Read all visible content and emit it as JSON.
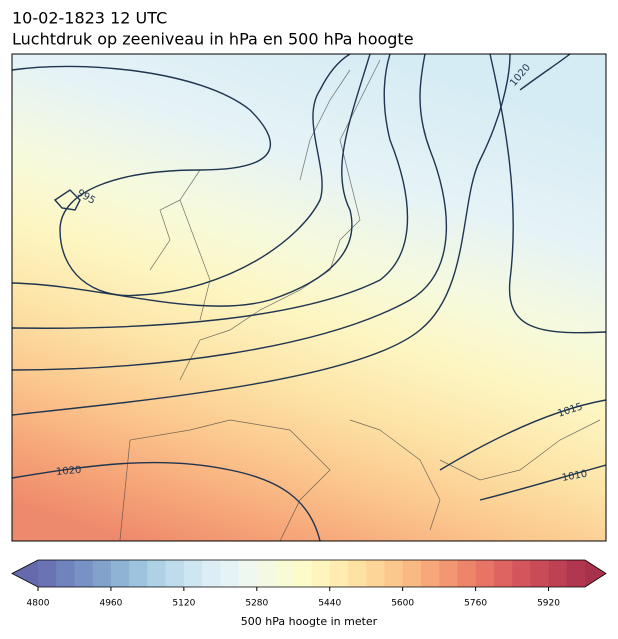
{
  "title": "10-02-1823 12 UTC",
  "subtitle": "Luchtdruk op zeeniveau in hPa en 500 hPa hoogte",
  "contour_labels": [
    995,
    1020,
    1015,
    1010,
    1020
  ],
  "colorbar": {
    "label": "500 hPa hoogte in meter",
    "range": [
      4800,
      6000
    ],
    "ticks": [
      4800,
      4960,
      5120,
      5280,
      5440,
      5600,
      5760,
      5920
    ],
    "under_color": "#646aac",
    "over_color": "#a8324c",
    "colors": [
      "#6a74b5",
      "#7083bd",
      "#7892c5",
      "#82a2cc",
      "#8fb3d5",
      "#9ec3de",
      "#aed1e6",
      "#bedcec",
      "#cee6f1",
      "#dcedf5",
      "#e6f3f6",
      "#eef7f0",
      "#f4f9e3",
      "#f9fbd6",
      "#fdfbca",
      "#fef4bd",
      "#feecb0",
      "#fee2a4",
      "#fdd598",
      "#fcc78d",
      "#fab883",
      "#f7a77a",
      "#f39672",
      "#ee856b",
      "#e77465",
      "#de6460",
      "#d4565c",
      "#c94b57",
      "#bd4153",
      "#b0374f"
    ]
  }
}
